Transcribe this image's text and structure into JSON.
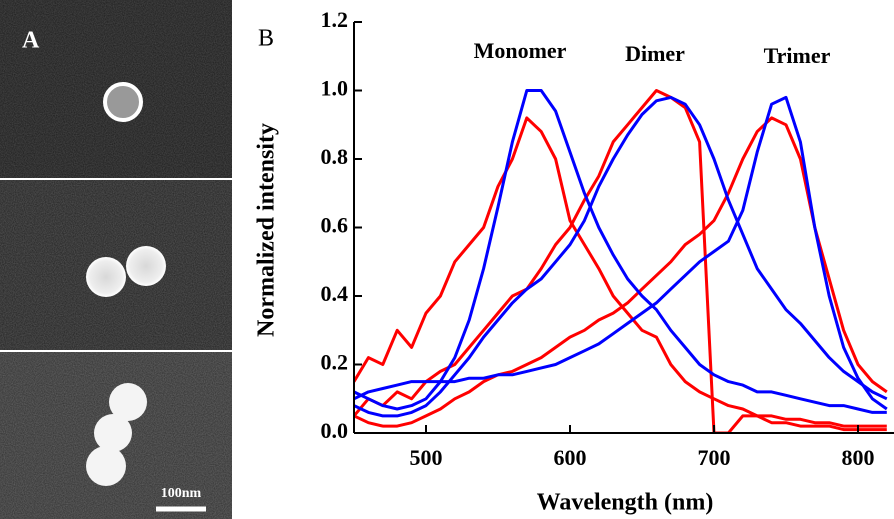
{
  "panel_a": {
    "label": "A",
    "scale_bar": "100nm"
  },
  "chart_data": {
    "type": "line",
    "panel_label": "B",
    "x_label": "Wavelength (nm)",
    "y_label": "Normalized intensity",
    "annotations": [
      "Monomer",
      "Dimer",
      "Trimer"
    ],
    "xlim": [
      450,
      825
    ],
    "ylim": [
      0,
      1.2
    ],
    "xticks": [
      500,
      600,
      700,
      800
    ],
    "yticks": [
      {
        "value": 0,
        "label": "0.0"
      },
      0.2,
      0.4,
      0.6,
      0.8,
      {
        "value": 1,
        "label": "1.0"
      },
      1.2
    ],
    "x": [
      450,
      460,
      470,
      480,
      490,
      500,
      510,
      520,
      530,
      540,
      550,
      560,
      570,
      580,
      590,
      600,
      610,
      620,
      630,
      640,
      650,
      660,
      670,
      680,
      690,
      700,
      710,
      720,
      730,
      740,
      750,
      760,
      770,
      780,
      790,
      800,
      810,
      820
    ],
    "series": [
      {
        "color": "#ff0000",
        "values": [
          0.15,
          0.22,
          0.2,
          0.3,
          0.25,
          0.35,
          0.4,
          0.5,
          0.55,
          0.6,
          0.72,
          0.8,
          0.92,
          0.88,
          0.8,
          0.62,
          0.55,
          0.48,
          0.4,
          0.35,
          0.3,
          0.28,
          0.2,
          0.15,
          0.12,
          0.1,
          0.08,
          0.07,
          0.05,
          0.05,
          0.04,
          0.04,
          0.03,
          0.03,
          0.02,
          0.02,
          0.02,
          0.02
        ]
      },
      {
        "color": "#ff0000",
        "values": [
          0.05,
          0.1,
          0.08,
          0.12,
          0.1,
          0.15,
          0.18,
          0.2,
          0.25,
          0.3,
          0.35,
          0.4,
          0.42,
          0.48,
          0.55,
          0.6,
          0.68,
          0.75,
          0.85,
          0.9,
          0.95,
          1.0,
          0.98,
          0.95,
          0.85,
          0,
          0,
          0.05,
          0.05,
          0.03,
          0.03,
          0.02,
          0.02,
          0.02,
          0.01,
          0.01,
          0.01,
          0.01
        ]
      },
      {
        "color": "#ff0000",
        "values": [
          0.05,
          0.03,
          0.02,
          0.02,
          0.03,
          0.05,
          0.07,
          0.1,
          0.12,
          0.15,
          0.17,
          0.18,
          0.2,
          0.22,
          0.25,
          0.28,
          0.3,
          0.33,
          0.35,
          0.38,
          0.42,
          0.46,
          0.5,
          0.55,
          0.58,
          0.62,
          0.7,
          0.8,
          0.88,
          0.92,
          0.9,
          0.8,
          0.6,
          0.45,
          0.3,
          0.2,
          0.15,
          0.12
        ]
      },
      {
        "color": "#0000ff",
        "values": [
          0.12,
          0.1,
          0.08,
          0.07,
          0.08,
          0.1,
          0.15,
          0.22,
          0.33,
          0.48,
          0.66,
          0.85,
          1.0,
          1.0,
          0.94,
          0.82,
          0.7,
          0.6,
          0.52,
          0.45,
          0.4,
          0.36,
          0.3,
          0.25,
          0.2,
          0.17,
          0.15,
          0.14,
          0.12,
          0.12,
          0.11,
          0.1,
          0.09,
          0.08,
          0.08,
          0.07,
          0.06,
          0.06
        ]
      },
      {
        "color": "#0000ff",
        "values": [
          0.08,
          0.06,
          0.05,
          0.05,
          0.06,
          0.08,
          0.12,
          0.17,
          0.22,
          0.28,
          0.33,
          0.38,
          0.42,
          0.45,
          0.5,
          0.55,
          0.62,
          0.72,
          0.8,
          0.87,
          0.93,
          0.97,
          0.98,
          0.96,
          0.9,
          0.8,
          0.68,
          0.58,
          0.48,
          0.42,
          0.36,
          0.32,
          0.27,
          0.22,
          0.18,
          0.15,
          0.12,
          0.1
        ]
      },
      {
        "color": "#0000ff",
        "values": [
          0.1,
          0.12,
          0.13,
          0.14,
          0.15,
          0.15,
          0.15,
          0.15,
          0.16,
          0.16,
          0.17,
          0.17,
          0.18,
          0.19,
          0.2,
          0.22,
          0.24,
          0.26,
          0.29,
          0.32,
          0.35,
          0.38,
          0.42,
          0.46,
          0.5,
          0.53,
          0.56,
          0.65,
          0.82,
          0.96,
          0.98,
          0.85,
          0.6,
          0.4,
          0.25,
          0.16,
          0.1,
          0.07
        ]
      }
    ]
  }
}
